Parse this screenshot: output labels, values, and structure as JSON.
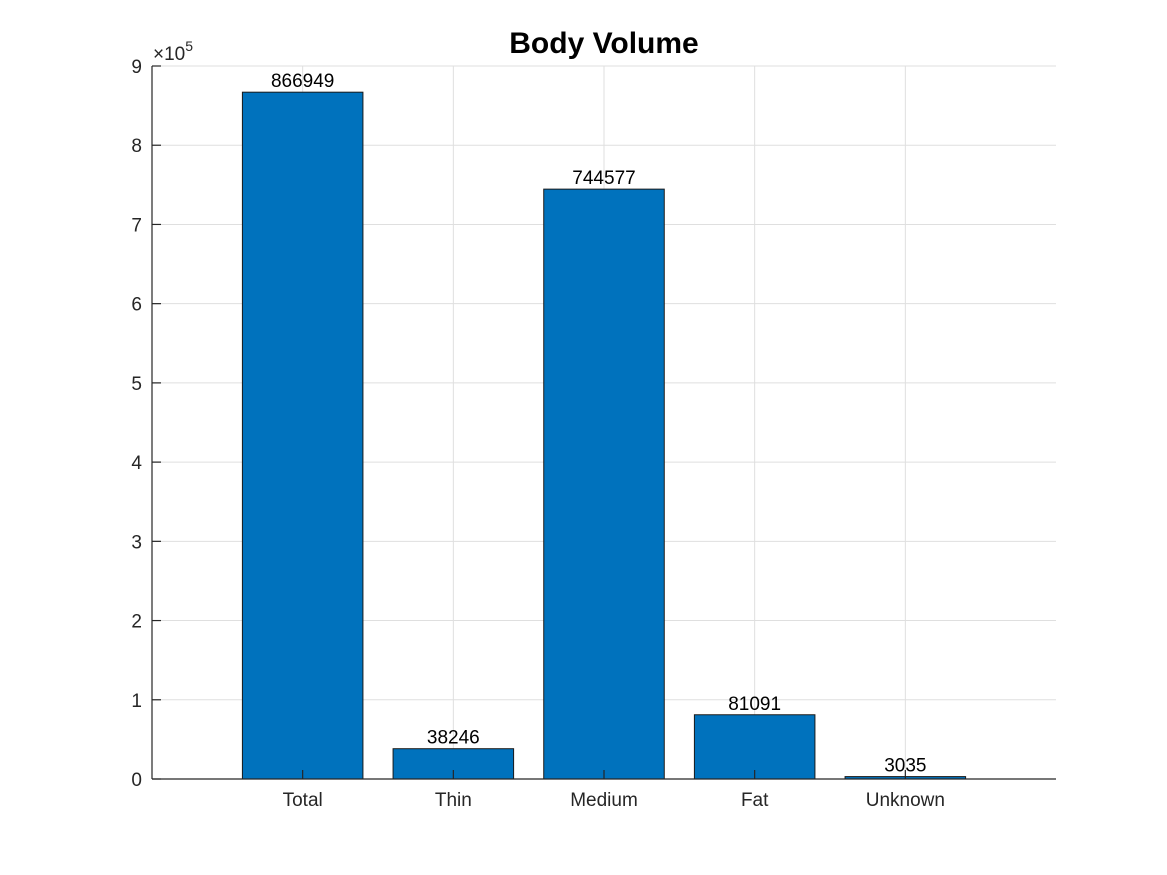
{
  "chart_data": {
    "type": "bar",
    "title": "Body Volume",
    "categories": [
      "Total",
      "Thin",
      "Medium",
      "Fat",
      "Unknown"
    ],
    "values": [
      866949,
      38246,
      744577,
      81091,
      3035
    ],
    "data_labels": [
      "866949",
      "38246",
      "744577",
      "81091",
      "3035"
    ],
    "ylim": [
      0,
      900000
    ],
    "xlim": [
      0,
      6
    ],
    "y_ticks": [
      0,
      100000,
      200000,
      300000,
      400000,
      500000,
      600000,
      700000,
      800000,
      900000
    ],
    "y_tick_labels": [
      "0",
      "1",
      "2",
      "3",
      "4",
      "5",
      "6",
      "7",
      "8",
      "9"
    ],
    "y_exponent": {
      "base": "×10",
      "power": "5"
    },
    "xlabel": "",
    "ylabel": "",
    "grid": true,
    "bar_color": "#0072BD"
  }
}
